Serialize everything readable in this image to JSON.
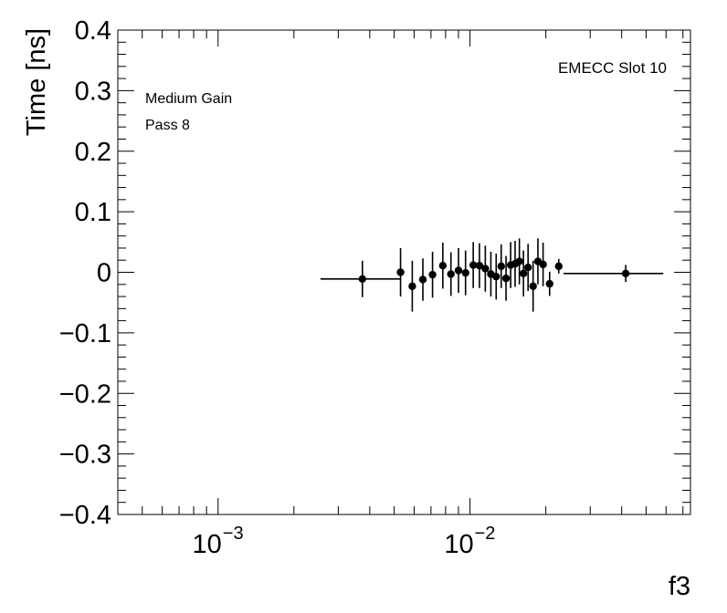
{
  "chart_data": {
    "type": "scatter",
    "title": "",
    "xlabel": "f3",
    "ylabel": "Time [ns]",
    "x_scale": "log",
    "xlim": [
      0.0004,
      0.075
    ],
    "ylim": [
      -0.4,
      0.4
    ],
    "y_ticks": [
      {
        "value": 0.4,
        "label": "0.4"
      },
      {
        "value": 0.3,
        "label": "0.3"
      },
      {
        "value": 0.2,
        "label": "0.2"
      },
      {
        "value": 0.1,
        "label": "0.1"
      },
      {
        "value": 0.0,
        "label": "0"
      },
      {
        "value": -0.1,
        "label": "−0.1"
      },
      {
        "value": -0.2,
        "label": "−0.2"
      },
      {
        "value": -0.3,
        "label": "−0.3"
      },
      {
        "value": -0.4,
        "label": "−0.4"
      }
    ],
    "x_ticks": [
      {
        "value": 0.001,
        "base": "10",
        "exp": "−3"
      },
      {
        "value": 0.01,
        "base": "10",
        "exp": "−2"
      }
    ],
    "annotations": {
      "top_right": "EMECC Slot 10",
      "line1": "Medium Gain",
      "line2": "Pass 8"
    },
    "grid": false,
    "legend": "none",
    "points": [
      {
        "x": 0.00374,
        "y": -0.011,
        "yerr": 0.03,
        "xlo": 0.00255,
        "xhi": 0.0053
      },
      {
        "x": 0.0053,
        "y": 0.0,
        "yerr": 0.04,
        "xlo": 0.0053,
        "xhi": 0.0053
      },
      {
        "x": 0.0059,
        "y": -0.023,
        "yerr": 0.042,
        "xlo": 0.0059,
        "xhi": 0.0059
      },
      {
        "x": 0.0065,
        "y": -0.012,
        "yerr": 0.035,
        "xlo": 0.0065,
        "xhi": 0.0065
      },
      {
        "x": 0.0071,
        "y": -0.004,
        "yerr": 0.038,
        "xlo": 0.0071,
        "xhi": 0.0071
      },
      {
        "x": 0.0078,
        "y": 0.011,
        "yerr": 0.038,
        "xlo": 0.0078,
        "xhi": 0.0078
      },
      {
        "x": 0.0084,
        "y": -0.003,
        "yerr": 0.036,
        "xlo": 0.0084,
        "xhi": 0.0084
      },
      {
        "x": 0.009,
        "y": 0.003,
        "yerr": 0.037,
        "xlo": 0.009,
        "xhi": 0.009
      },
      {
        "x": 0.0096,
        "y": -0.001,
        "yerr": 0.037,
        "xlo": 0.0096,
        "xhi": 0.0096
      },
      {
        "x": 0.0103,
        "y": 0.012,
        "yerr": 0.038,
        "xlo": 0.0103,
        "xhi": 0.0103
      },
      {
        "x": 0.0109,
        "y": 0.011,
        "yerr": 0.037,
        "xlo": 0.0109,
        "xhi": 0.0109
      },
      {
        "x": 0.0115,
        "y": 0.006,
        "yerr": 0.038,
        "xlo": 0.0115,
        "xhi": 0.0115
      },
      {
        "x": 0.0121,
        "y": -0.003,
        "yerr": 0.037,
        "xlo": 0.0121,
        "xhi": 0.0121
      },
      {
        "x": 0.0127,
        "y": -0.007,
        "yerr": 0.038,
        "xlo": 0.0127,
        "xhi": 0.0127
      },
      {
        "x": 0.0133,
        "y": 0.01,
        "yerr": 0.036,
        "xlo": 0.0133,
        "xhi": 0.0133
      },
      {
        "x": 0.0139,
        "y": -0.01,
        "yerr": 0.037,
        "xlo": 0.0139,
        "xhi": 0.0139
      },
      {
        "x": 0.0145,
        "y": 0.012,
        "yerr": 0.038,
        "xlo": 0.0145,
        "xhi": 0.0145
      },
      {
        "x": 0.0151,
        "y": 0.014,
        "yerr": 0.038,
        "xlo": 0.0151,
        "xhi": 0.0151
      },
      {
        "x": 0.0157,
        "y": 0.018,
        "yerr": 0.038,
        "xlo": 0.0157,
        "xhi": 0.0157
      },
      {
        "x": 0.0163,
        "y": -0.002,
        "yerr": 0.038,
        "xlo": 0.0163,
        "xhi": 0.0163
      },
      {
        "x": 0.017,
        "y": 0.008,
        "yerr": 0.039,
        "xlo": 0.017,
        "xhi": 0.017
      },
      {
        "x": 0.0178,
        "y": -0.023,
        "yerr": 0.042,
        "xlo": 0.0178,
        "xhi": 0.0178
      },
      {
        "x": 0.0186,
        "y": 0.018,
        "yerr": 0.038,
        "xlo": 0.0186,
        "xhi": 0.0186
      },
      {
        "x": 0.0195,
        "y": 0.013,
        "yerr": 0.036,
        "xlo": 0.0195,
        "xhi": 0.0195
      },
      {
        "x": 0.0207,
        "y": -0.019,
        "yerr": 0.02,
        "xlo": 0.0207,
        "xhi": 0.0207
      },
      {
        "x": 0.0225,
        "y": 0.01,
        "yerr": 0.012,
        "xlo": 0.0225,
        "xhi": 0.0225
      },
      {
        "x": 0.0415,
        "y": -0.002,
        "yerr": 0.014,
        "xlo": 0.0235,
        "xhi": 0.0585
      }
    ]
  }
}
